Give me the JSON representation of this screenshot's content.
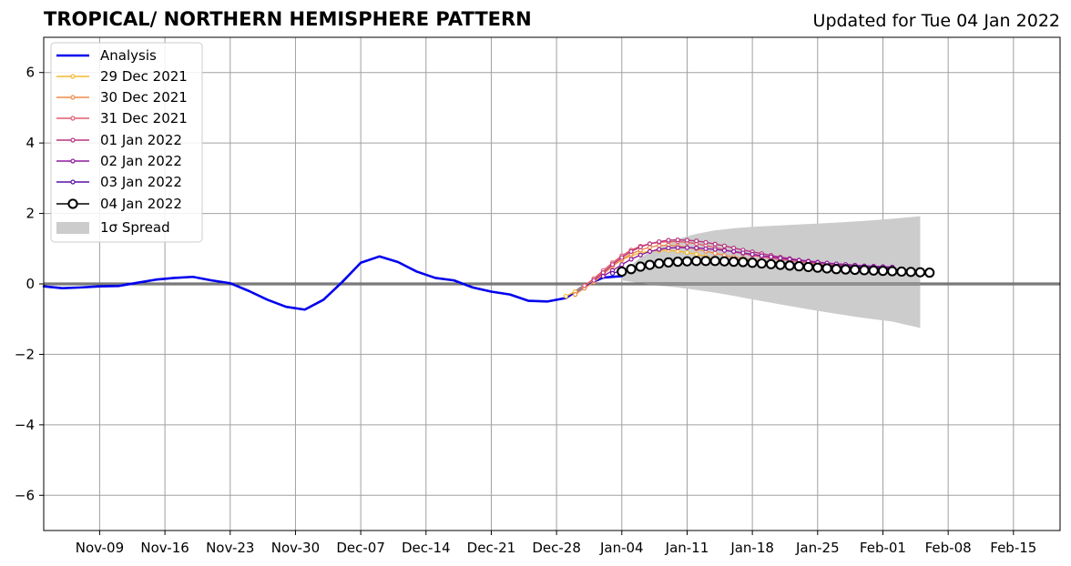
{
  "header": {
    "title": "TROPICAL/ NORTHERN HEMISPHERE PATTERN",
    "updated": "Updated for Tue 04 Jan 2022"
  },
  "chart_data": {
    "type": "line",
    "title": "TROPICAL/ NORTHERN HEMISPHERE PATTERN",
    "xlabel": "",
    "ylabel": "",
    "xlim": [
      "2021-11-03",
      "2022-02-20"
    ],
    "ylim": [
      -7,
      7
    ],
    "grid": true,
    "legend_position": "top-left",
    "x_ticks": [
      "Nov-09",
      "Nov-16",
      "Nov-23",
      "Nov-30",
      "Dec-07",
      "Dec-14",
      "Dec-21",
      "Dec-28",
      "Jan-04",
      "Jan-11",
      "Jan-18",
      "Jan-25",
      "Feb-01",
      "Feb-08",
      "Feb-15"
    ],
    "y_ticks": [
      -6,
      -4,
      -2,
      0,
      2,
      4,
      6
    ],
    "y_tick_labels": [
      "−6",
      "−4",
      "−2",
      "0",
      "2",
      "4",
      "6"
    ],
    "analysis": {
      "name": "Analysis",
      "color": "#0000ee",
      "x": [
        "2021-11-03",
        "2021-11-05",
        "2021-11-07",
        "2021-11-09",
        "2021-11-11",
        "2021-11-13",
        "2021-11-15",
        "2021-11-17",
        "2021-11-19",
        "2021-11-21",
        "2021-11-23",
        "2021-11-25",
        "2021-11-27",
        "2021-11-29",
        "2021-12-01",
        "2021-12-03",
        "2021-12-05",
        "2021-12-07",
        "2021-12-09",
        "2021-12-11",
        "2021-12-13",
        "2021-12-15",
        "2021-12-17",
        "2021-12-19",
        "2021-12-21",
        "2021-12-23",
        "2021-12-25",
        "2021-12-27",
        "2021-12-29",
        "2021-12-31",
        "2022-01-02",
        "2022-01-04"
      ],
      "y": [
        -0.07,
        -0.12,
        -0.1,
        -0.07,
        -0.06,
        0.03,
        0.12,
        0.17,
        0.2,
        0.1,
        0.02,
        -0.2,
        -0.45,
        -0.65,
        -0.73,
        -0.45,
        0.05,
        0.6,
        0.78,
        0.62,
        0.35,
        0.17,
        0.1,
        -0.1,
        -0.22,
        -0.3,
        -0.48,
        -0.5,
        -0.4,
        -0.05,
        0.18,
        0.22
      ]
    },
    "forecasts": [
      {
        "name": "29 Dec 2021",
        "color": "#f5b731",
        "start": "2021-12-29",
        "y": [
          -0.35,
          -0.22,
          -0.05,
          0.12,
          0.32,
          0.52,
          0.68,
          0.8,
          0.88,
          0.93,
          0.95,
          0.95,
          0.93,
          0.89,
          0.84,
          0.78,
          0.72,
          0.66,
          0.61,
          0.57,
          0.54,
          0.52,
          0.51,
          0.51,
          0.5,
          0.5,
          0.49,
          0.48,
          0.47,
          0.46,
          0.45,
          0.45,
          0.44,
          0.44,
          0.43
        ]
      },
      {
        "name": "30 Dec 2021",
        "color": "#f08a4b",
        "start": "2021-12-30",
        "y": [
          -0.3,
          -0.12,
          0.05,
          0.27,
          0.5,
          0.7,
          0.85,
          0.96,
          1.04,
          1.09,
          1.1,
          1.08,
          1.04,
          0.99,
          0.93,
          0.87,
          0.81,
          0.76,
          0.72,
          0.68,
          0.65,
          0.62,
          0.6,
          0.58,
          0.56,
          0.54,
          0.52,
          0.5,
          0.49,
          0.48,
          0.47,
          0.46,
          0.45,
          0.44,
          0.43
        ]
      },
      {
        "name": "31 Dec 2021",
        "color": "#e05c6d",
        "start": "2021-12-31",
        "y": [
          -0.05,
          0.15,
          0.38,
          0.6,
          0.8,
          0.96,
          1.07,
          1.14,
          1.18,
          1.2,
          1.2,
          1.18,
          1.14,
          1.09,
          1.03,
          0.97,
          0.91,
          0.86,
          0.81,
          0.77,
          0.73,
          0.69,
          0.66,
          0.63,
          0.6,
          0.58,
          0.56,
          0.54,
          0.52,
          0.5,
          0.49,
          0.48,
          0.47,
          0.46
        ]
      },
      {
        "name": "01 Jan 2022",
        "color": "#b8357f",
        "start": "2022-01-01",
        "y": [
          0.1,
          0.32,
          0.55,
          0.75,
          0.92,
          1.05,
          1.14,
          1.2,
          1.24,
          1.25,
          1.24,
          1.22,
          1.18,
          1.13,
          1.08,
          1.02,
          0.96,
          0.91,
          0.86,
          0.81,
          0.76,
          0.72,
          0.68,
          0.65,
          0.62,
          0.59,
          0.57,
          0.55,
          0.53,
          0.51,
          0.5,
          0.49,
          0.48
        ]
      },
      {
        "name": "02 Jan 2022",
        "color": "#8e1a9e",
        "start": "2022-01-02",
        "y": [
          0.22,
          0.38,
          0.55,
          0.7,
          0.82,
          0.92,
          0.98,
          1.02,
          1.03,
          1.03,
          1.02,
          1.0,
          0.98,
          0.95,
          0.92,
          0.88,
          0.84,
          0.8,
          0.77,
          0.73,
          0.7,
          0.67,
          0.64,
          0.61,
          0.59,
          0.57,
          0.55,
          0.53,
          0.51,
          0.5,
          0.49,
          0.48
        ]
      },
      {
        "name": "03 Jan 2022",
        "color": "#5a0fa6",
        "start": "2022-01-03",
        "y": [
          0.3,
          0.38,
          0.46,
          0.52,
          0.57,
          0.61,
          0.64,
          0.66,
          0.67,
          0.68,
          0.68,
          0.68,
          0.67,
          0.66,
          0.65,
          0.64,
          0.62,
          0.61,
          0.59,
          0.58,
          0.56,
          0.55,
          0.53,
          0.52,
          0.51,
          0.5,
          0.49,
          0.48,
          0.47,
          0.46,
          0.45
        ]
      }
    ],
    "current": {
      "name": "04 Jan 2022",
      "color": "#000000",
      "start": "2022-01-04",
      "y": [
        0.35,
        0.42,
        0.49,
        0.54,
        0.58,
        0.61,
        0.63,
        0.64,
        0.65,
        0.65,
        0.65,
        0.64,
        0.63,
        0.62,
        0.6,
        0.58,
        0.56,
        0.54,
        0.52,
        0.5,
        0.48,
        0.46,
        0.44,
        0.42,
        0.41,
        0.4,
        0.39,
        0.38,
        0.37,
        0.36,
        0.35,
        0.34,
        0.33,
        0.32
      ]
    },
    "spread": {
      "name": "1σ Spread",
      "color": "#cccccc",
      "x": [
        "2022-01-04",
        "2022-01-06",
        "2022-01-08",
        "2022-01-10",
        "2022-01-12",
        "2022-01-14",
        "2022-01-16",
        "2022-01-18",
        "2022-01-21",
        "2022-01-24",
        "2022-01-27",
        "2022-01-30",
        "2022-02-02",
        "2022-02-05"
      ],
      "upper": [
        0.3,
        0.75,
        1.05,
        1.28,
        1.42,
        1.52,
        1.58,
        1.62,
        1.66,
        1.7,
        1.74,
        1.79,
        1.85,
        1.92
      ],
      "lower": [
        0.1,
        0.02,
        -0.05,
        -0.1,
        -0.17,
        -0.25,
        -0.34,
        -0.44,
        -0.58,
        -0.72,
        -0.85,
        -0.97,
        -1.07,
        -1.25
      ]
    }
  }
}
